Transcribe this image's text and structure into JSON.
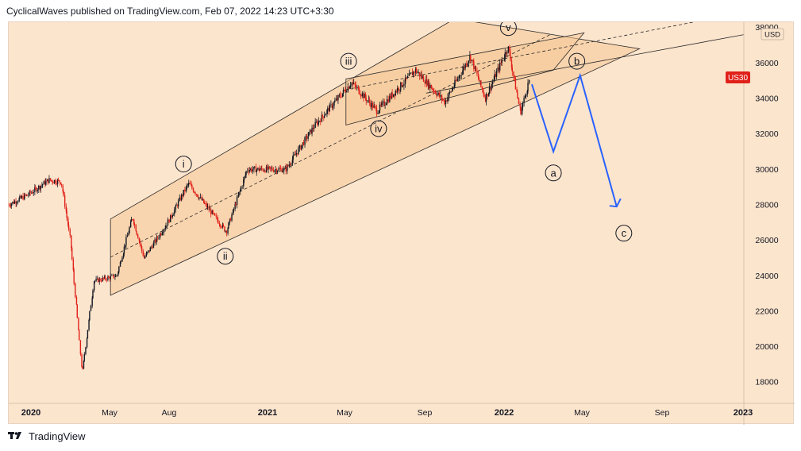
{
  "header": {
    "publisher_line": "CyclicalWaves published on TradingView.com, Feb 07, 2022 14:23 UTC+3:30"
  },
  "footer": {
    "brand": "TradingView"
  },
  "colors": {
    "background": "#fce5cd",
    "channel_fill": "#f5c998",
    "candle_up": "#131722",
    "candle_down": "#e0211a",
    "projection": "#2962ff",
    "price_badge": "#e0211a"
  },
  "chart_data": {
    "type": "line",
    "symbol": "US30",
    "currency": "USD",
    "y_ticks": [
      18000,
      20000,
      22000,
      24000,
      26000,
      28000,
      30000,
      32000,
      34000,
      36000,
      38000
    ],
    "x_ticks": [
      "2020",
      "May",
      "Aug",
      "2021",
      "May",
      "Sep",
      "2022",
      "May",
      "Sep",
      "2023"
    ],
    "ylim": [
      16800,
      38300
    ],
    "price_series": [
      {
        "x": "2019-12-01",
        "y": 28000
      },
      {
        "x": "2020-01-01",
        "y": 28600
      },
      {
        "x": "2020-02-01",
        "y": 29400
      },
      {
        "x": "2020-02-20",
        "y": 29300
      },
      {
        "x": "2020-03-05",
        "y": 26000
      },
      {
        "x": "2020-03-23",
        "y": 18500
      },
      {
        "x": "2020-04-10",
        "y": 23700
      },
      {
        "x": "2020-05-15",
        "y": 24000
      },
      {
        "x": "2020-06-08",
        "y": 27300
      },
      {
        "x": "2020-06-26",
        "y": 25000
      },
      {
        "x": "2020-08-01",
        "y": 27000
      },
      {
        "x": "2020-09-02",
        "y": 29200
      },
      {
        "x": "2020-10-30",
        "y": 26500
      },
      {
        "x": "2020-12-01",
        "y": 30000
      },
      {
        "x": "2021-01-29",
        "y": 30000
      },
      {
        "x": "2021-03-15",
        "y": 32500
      },
      {
        "x": "2021-05-10",
        "y": 34900
      },
      {
        "x": "2021-06-18",
        "y": 33300
      },
      {
        "x": "2021-08-16",
        "y": 35600
      },
      {
        "x": "2021-09-30",
        "y": 33800
      },
      {
        "x": "2021-11-08",
        "y": 36400
      },
      {
        "x": "2021-12-01",
        "y": 34000
      },
      {
        "x": "2022-01-05",
        "y": 36900
      },
      {
        "x": "2022-01-24",
        "y": 33200
      },
      {
        "x": "2022-02-07",
        "y": 35100
      }
    ],
    "projection": [
      {
        "x": "2022-02-10",
        "y": 34800
      },
      {
        "x": "2022-03-15",
        "y": 31000
      },
      {
        "x": "2022-04-25",
        "y": 35300
      },
      {
        "x": "2022-06-20",
        "y": 27900
      }
    ],
    "wave_labels": [
      {
        "text": "i",
        "x": "2020-08-25",
        "y": 30300
      },
      {
        "text": "ii",
        "x": "2020-10-28",
        "y": 25100
      },
      {
        "text": "iii",
        "x": "2021-05-05",
        "y": 36100
      },
      {
        "text": "iv",
        "x": "2021-06-20",
        "y": 32300
      },
      {
        "text": "v",
        "x": "2022-01-05",
        "y": 38000
      },
      {
        "text": "a",
        "x": "2022-03-15",
        "y": 29800
      },
      {
        "text": "b",
        "x": "2022-04-20",
        "y": 36100
      },
      {
        "text": "c",
        "x": "2022-07-01",
        "y": 26400
      }
    ],
    "last_price_label": "US30",
    "grid": false,
    "legend": "none"
  }
}
